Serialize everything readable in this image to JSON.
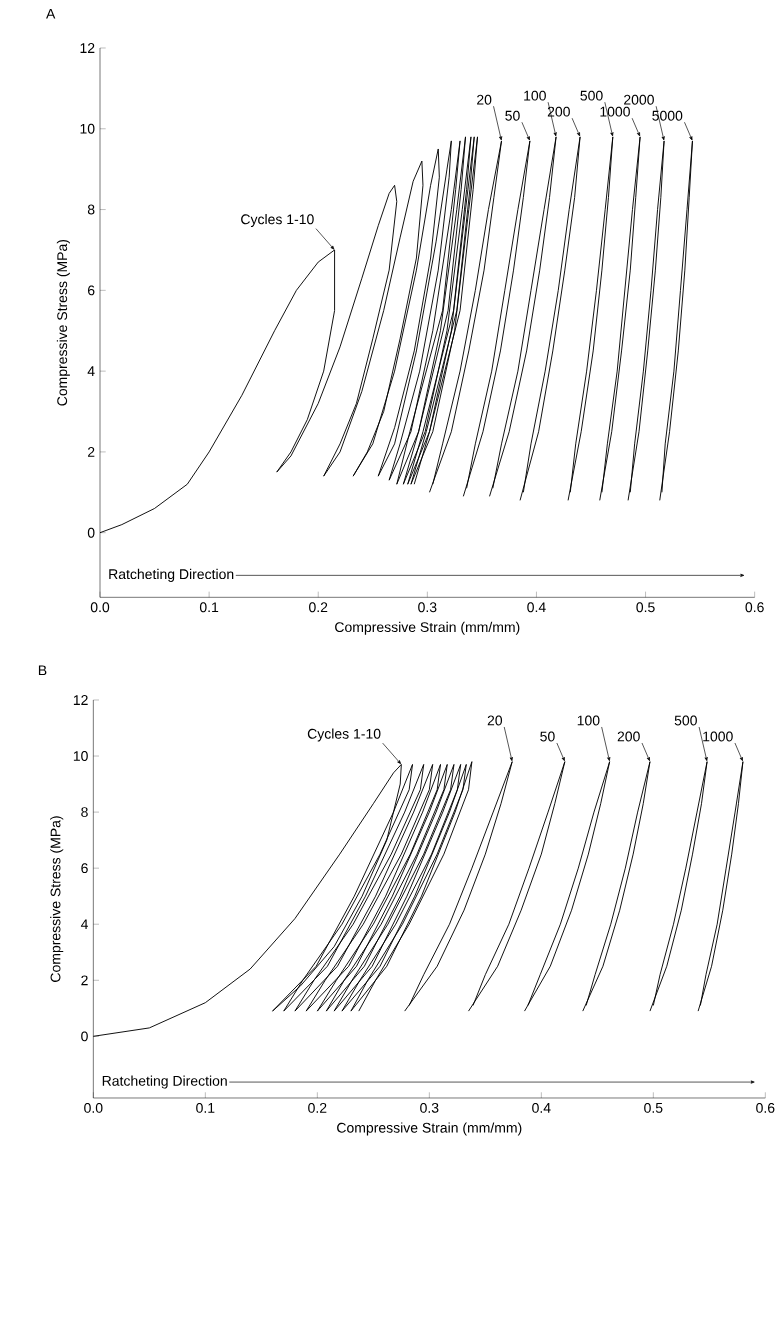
{
  "chart_data": [
    {
      "type": "line",
      "title": "A",
      "xlabel": "Compressive Strain (mm/mm)",
      "ylabel": "Compressive Stress (MPa)",
      "xlim": [
        0,
        0.6
      ],
      "ylim": [
        -1.6,
        12
      ],
      "xticks": [
        {
          "value": 0,
          "label": "0.0"
        },
        0.1,
        0.2,
        0.3,
        0.4,
        0.5,
        0.6
      ],
      "yticks": [
        0,
        2,
        4,
        6,
        8,
        10,
        12
      ],
      "series": [
        {
          "color": "#000000",
          "x": [
            0,
            0.02,
            0.05,
            0.08,
            0.1,
            0.13,
            0.16,
            0.18,
            0.2,
            0.215,
            0.215,
            0.205,
            0.19,
            0.175,
            0.162,
            0.175,
            0.2,
            0.22,
            0.24,
            0.255,
            0.265,
            0.27,
            0.272,
            0.265,
            0.25,
            0.235,
            0.22,
            0.205,
            0.22,
            0.24,
            0.26,
            0.275,
            0.287,
            0.295,
            0.296,
            0.29,
            0.275,
            0.26,
            0.245,
            0.232,
            0.25,
            0.27,
            0.29,
            0.303,
            0.31,
            0.311,
            0.303,
            0.288,
            0.27,
            0.255,
            0.27,
            0.29,
            0.308,
            0.318,
            0.322,
            0.32,
            0.31,
            0.293,
            0.275,
            0.265,
            0.285,
            0.305,
            0.322,
            0.33,
            0.326,
            0.314,
            0.284,
            0.272,
            0.292,
            0.312,
            0.327,
            0.335,
            0.331,
            0.319,
            0.292,
            0.278,
            0.298,
            0.318,
            0.332,
            0.34,
            0.336,
            0.324,
            0.296,
            0.282,
            0.302,
            0.322,
            0.335,
            0.343,
            0.339,
            0.327,
            0.299,
            0.285,
            0.305,
            0.325,
            0.338,
            0.346,
            0.342,
            0.33,
            0.302,
            0.288
          ],
          "values": [
            0,
            0.2,
            0.6,
            1.2,
            2.0,
            3.4,
            5.0,
            6.0,
            6.7,
            7.0,
            5.5,
            4.0,
            2.8,
            2.0,
            1.5,
            1.9,
            3.2,
            4.6,
            6.3,
            7.6,
            8.4,
            8.6,
            8.2,
            6.5,
            4.8,
            3.2,
            2.2,
            1.4,
            2.0,
            3.5,
            5.5,
            7.3,
            8.7,
            9.2,
            8.6,
            6.8,
            4.8,
            3.0,
            2.0,
            1.4,
            2.2,
            4.0,
            6.5,
            8.6,
            9.5,
            8.8,
            6.8,
            4.5,
            2.6,
            1.4,
            2.2,
            4.5,
            7.2,
            9.0,
            9.7,
            8.8,
            6.5,
            4.0,
            2.2,
            1.3,
            2.5,
            5.0,
            8.0,
            9.7,
            8.5,
            5.5,
            2.5,
            1.2,
            2.5,
            5.0,
            8.0,
            9.8,
            8.5,
            5.5,
            2.5,
            1.2,
            2.5,
            5.0,
            8.0,
            9.8,
            8.5,
            5.5,
            2.5,
            1.2,
            2.5,
            5.0,
            8.0,
            9.8,
            8.5,
            5.5,
            2.5,
            1.2,
            2.5,
            5.0,
            8.0,
            9.8,
            8.5,
            5.5,
            2.5,
            1.2
          ]
        },
        {
          "color": "#000000",
          "x": [
            0.302,
            0.322,
            0.338,
            0.352,
            0.361,
            0.368,
            0.356,
            0.344,
            0.33,
            0.314,
            0.305
          ],
          "values": [
            1.0,
            2.5,
            4.5,
            6.5,
            8.3,
            9.7,
            8.0,
            6.0,
            4.0,
            2.2,
            1.2
          ]
        },
        {
          "color": "#000000",
          "x": [
            0.333,
            0.351,
            0.367,
            0.379,
            0.388,
            0.394,
            0.383,
            0.371,
            0.359,
            0.344,
            0.336
          ],
          "values": [
            0.9,
            2.5,
            4.5,
            6.5,
            8.3,
            9.7,
            8.0,
            6.0,
            4.0,
            2.2,
            1.1
          ]
        },
        {
          "color": "#000000",
          "x": [
            0.357,
            0.375,
            0.391,
            0.403,
            0.412,
            0.418,
            0.407,
            0.395,
            0.383,
            0.368,
            0.36
          ],
          "values": [
            0.9,
            2.5,
            4.5,
            6.5,
            8.3,
            9.8,
            8.0,
            6.0,
            4.0,
            2.2,
            1.1
          ]
        },
        {
          "color": "#000000",
          "x": [
            0.385,
            0.402,
            0.415,
            0.426,
            0.435,
            0.44,
            0.43,
            0.42,
            0.408,
            0.395,
            0.388
          ],
          "values": [
            0.8,
            2.5,
            4.5,
            6.5,
            8.3,
            9.8,
            8.0,
            6.0,
            4.0,
            2.2,
            1.0
          ]
        },
        {
          "color": "#000000",
          "x": [
            0.429,
            0.441,
            0.452,
            0.46,
            0.466,
            0.47,
            0.463,
            0.455,
            0.446,
            0.436,
            0.431
          ],
          "values": [
            0.8,
            2.5,
            4.5,
            6.5,
            8.3,
            9.8,
            8.0,
            6.0,
            4.0,
            2.2,
            1.0
          ]
        },
        {
          "color": "#000000",
          "x": [
            0.458,
            0.469,
            0.478,
            0.486,
            0.491,
            0.495,
            0.488,
            0.481,
            0.474,
            0.465,
            0.46
          ],
          "values": [
            0.8,
            2.5,
            4.5,
            6.5,
            8.3,
            9.8,
            8.0,
            6.0,
            4.0,
            2.2,
            1.0
          ]
        },
        {
          "color": "#000000",
          "x": [
            0.484,
            0.494,
            0.502,
            0.509,
            0.514,
            0.517,
            0.511,
            0.505,
            0.498,
            0.49,
            0.486
          ],
          "values": [
            0.8,
            2.5,
            4.5,
            6.5,
            8.3,
            9.7,
            8.0,
            6.0,
            4.0,
            2.2,
            1.0
          ]
        },
        {
          "color": "#000000",
          "x": [
            0.513,
            0.522,
            0.53,
            0.536,
            0.54,
            0.543,
            0.538,
            0.532,
            0.526,
            0.518,
            0.515
          ],
          "values": [
            0.8,
            2.5,
            4.5,
            6.5,
            8.3,
            9.7,
            8.0,
            6.0,
            4.0,
            2.2,
            1.0
          ]
        }
      ],
      "annotations": [
        {
          "text": "Cycles 1-10",
          "x": 0.215,
          "y": 7.0
        },
        {
          "text": "20",
          "x": 0.368,
          "y": 9.7
        },
        {
          "text": "50",
          "x": 0.394,
          "y": 9.7
        },
        {
          "text": "100",
          "x": 0.418,
          "y": 9.8
        },
        {
          "text": "200",
          "x": 0.44,
          "y": 9.8
        },
        {
          "text": "500",
          "x": 0.47,
          "y": 9.8
        },
        {
          "text": "1000",
          "x": 0.495,
          "y": 9.8
        },
        {
          "text": "2000",
          "x": 0.517,
          "y": 9.7
        },
        {
          "text": "5000",
          "x": 0.543,
          "y": 9.7
        },
        "Ratcheting Direction"
      ]
    },
    {
      "type": "line",
      "title": "B",
      "xlabel": "Compressive Strain (mm/mm)",
      "ylabel": "Compressive Stress (MPa)",
      "xlim": [
        0,
        0.6
      ],
      "ylim": [
        -2.2,
        12
      ],
      "xticks": [
        {
          "value": 0,
          "label": "0.0"
        },
        0.1,
        0.2,
        0.3,
        0.4,
        0.5,
        0.6
      ],
      "yticks": [
        0,
        2,
        4,
        6,
        8,
        10,
        12
      ],
      "series": [
        {
          "color": "#000000",
          "x": [
            0,
            0.05,
            0.1,
            0.14,
            0.18,
            0.22,
            0.25,
            0.268,
            0.275,
            0.274,
            0.262,
            0.24,
            0.215,
            0.185,
            0.16,
            0.199,
            0.233,
            0.268,
            0.285,
            0.282,
            0.256,
            0.222,
            0.187,
            0.17,
            0.209,
            0.243,
            0.278,
            0.295,
            0.292,
            0.266,
            0.232,
            0.197,
            0.18,
            0.218,
            0.252,
            0.286,
            0.303,
            0.3,
            0.275,
            0.241,
            0.207,
            0.19,
            0.228,
            0.261,
            0.294,
            0.31,
            0.307,
            0.283,
            0.25,
            0.217,
            0.2,
            0.235,
            0.267,
            0.3,
            0.316,
            0.313,
            0.289,
            0.257,
            0.224,
            0.208,
            0.242,
            0.274,
            0.306,
            0.322,
            0.319,
            0.295,
            0.263,
            0.231,
            0.215,
            0.249,
            0.28,
            0.312,
            0.328,
            0.325,
            0.302,
            0.27,
            0.238,
            0.222,
            0.256,
            0.287,
            0.318,
            0.333,
            0.33,
            0.307,
            0.276,
            0.245,
            0.23,
            0.262,
            0.293,
            0.323,
            0.338,
            0.335,
            0.313,
            0.282,
            0.252,
            0.237
          ],
          "values": [
            0,
            0.3,
            1.2,
            2.4,
            4.2,
            6.5,
            8.3,
            9.4,
            9.7,
            9.0,
            7.0,
            5.0,
            3.2,
            1.8,
            0.9,
            2.5,
            5.0,
            8.0,
            9.7,
            8.8,
            6.5,
            4.0,
            2.0,
            0.9,
            2.5,
            5.0,
            8.0,
            9.7,
            8.8,
            6.5,
            4.0,
            2.0,
            0.9,
            2.5,
            5.0,
            8.0,
            9.7,
            8.8,
            6.5,
            4.0,
            2.0,
            0.9,
            2.5,
            5.0,
            8.0,
            9.7,
            8.8,
            6.5,
            4.0,
            2.0,
            0.9,
            2.5,
            5.0,
            8.0,
            9.7,
            8.8,
            6.5,
            4.0,
            2.0,
            0.9,
            2.5,
            5.0,
            8.0,
            9.7,
            8.8,
            6.5,
            4.0,
            2.0,
            0.9,
            2.5,
            5.0,
            8.0,
            9.7,
            8.8,
            6.5,
            4.0,
            2.0,
            0.9,
            2.5,
            5.0,
            8.0,
            9.7,
            8.8,
            6.5,
            4.0,
            2.0,
            0.9,
            2.5,
            5.0,
            8.0,
            9.8,
            8.8,
            6.5,
            4.0,
            2.0,
            0.9
          ]
        },
        {
          "color": "#000000",
          "x": [
            0.278,
            0.307,
            0.331,
            0.35,
            0.364,
            0.374,
            0.357,
            0.338,
            0.318,
            0.295,
            0.282
          ],
          "values": [
            0.9,
            2.5,
            4.5,
            6.5,
            8.3,
            9.8,
            8.0,
            6.0,
            4.0,
            2.2,
            1.1
          ]
        },
        {
          "color": "#000000",
          "x": [
            0.335,
            0.361,
            0.382,
            0.4,
            0.412,
            0.421,
            0.406,
            0.389,
            0.371,
            0.35,
            0.339
          ],
          "values": [
            0.9,
            2.5,
            4.5,
            6.5,
            8.3,
            9.8,
            8.0,
            6.0,
            4.0,
            2.2,
            1.1
          ]
        },
        {
          "color": "#000000",
          "x": [
            0.385,
            0.408,
            0.427,
            0.442,
            0.453,
            0.461,
            0.447,
            0.433,
            0.417,
            0.399,
            0.388
          ],
          "values": [
            0.9,
            2.5,
            4.5,
            6.5,
            8.3,
            9.8,
            8.0,
            6.0,
            4.0,
            2.2,
            1.1
          ]
        },
        {
          "color": "#000000",
          "x": [
            0.437,
            0.455,
            0.47,
            0.482,
            0.491,
            0.497,
            0.486,
            0.475,
            0.462,
            0.448,
            0.44
          ],
          "values": [
            0.9,
            2.5,
            4.5,
            6.5,
            8.3,
            9.8,
            8.0,
            6.0,
            4.0,
            2.2,
            1.1
          ]
        },
        {
          "color": "#000000",
          "x": [
            0.497,
            0.512,
            0.525,
            0.535,
            0.543,
            0.548,
            0.539,
            0.529,
            0.518,
            0.506,
            0.5
          ],
          "values": [
            0.9,
            2.5,
            4.5,
            6.5,
            8.3,
            9.8,
            8.0,
            6.0,
            4.0,
            2.2,
            1.1
          ]
        },
        {
          "color": "#000000",
          "x": [
            0.54,
            0.552,
            0.562,
            0.57,
            0.576,
            0.58,
            0.573,
            0.565,
            0.557,
            0.547,
            0.542
          ],
          "values": [
            0.9,
            2.5,
            4.5,
            6.5,
            8.3,
            9.8,
            8.0,
            6.0,
            4.0,
            2.2,
            1.1
          ]
        }
      ],
      "annotations": [
        {
          "text": "Cycles 1-10",
          "x": 0.275,
          "y": 9.7
        },
        {
          "text": "20",
          "x": 0.374,
          "y": 9.8
        },
        {
          "text": "50",
          "x": 0.421,
          "y": 9.8
        },
        {
          "text": "100",
          "x": 0.461,
          "y": 9.8
        },
        {
          "text": "200",
          "x": 0.497,
          "y": 9.8
        },
        {
          "text": "500",
          "x": 0.548,
          "y": 9.8
        },
        {
          "text": "1000",
          "x": 0.58,
          "y": 9.8
        },
        "Ratcheting Direction"
      ]
    }
  ]
}
